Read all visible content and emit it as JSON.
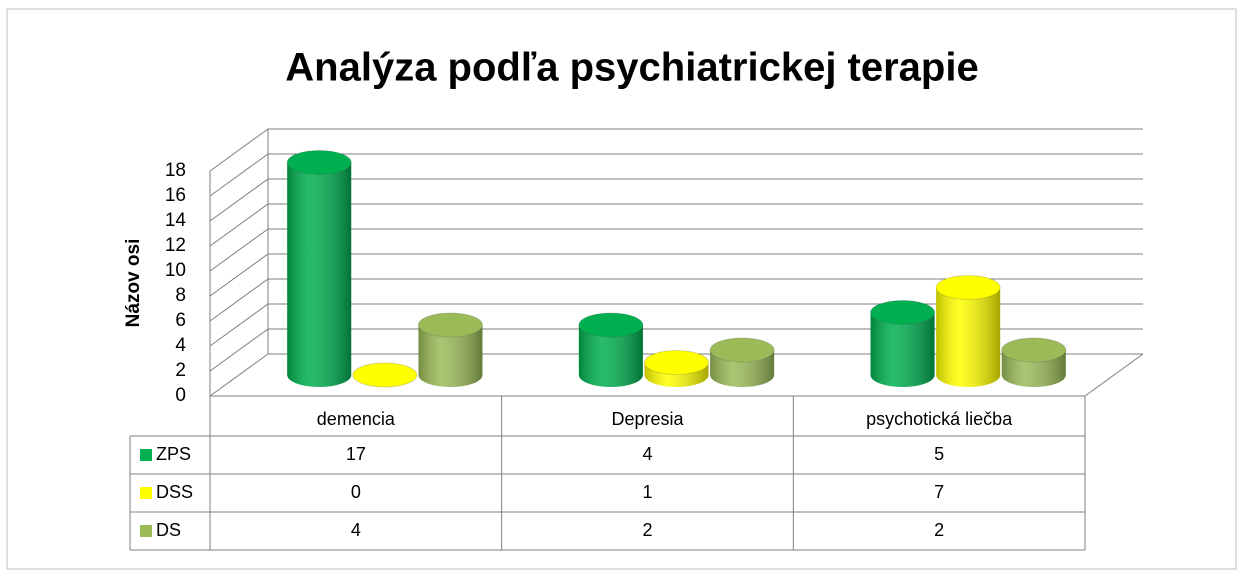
{
  "chart_data": {
    "type": "bar3d-cylinder",
    "title": "Analýza podľa psychiatrickej terapie",
    "y_axis_label": "Názov osi",
    "categories": [
      "demencia",
      "Depresia",
      "psychotická liečba"
    ],
    "series": [
      {
        "name": "ZPS",
        "color": "#00b050",
        "values": [
          17,
          4,
          5
        ]
      },
      {
        "name": "DSS",
        "color": "#ffff00",
        "values": [
          0,
          1,
          7
        ]
      },
      {
        "name": "DS",
        "color": "#9bbb59",
        "values": [
          4,
          2,
          2
        ]
      }
    ],
    "ylim": [
      0,
      18
    ],
    "yticks": [
      0,
      2,
      4,
      6,
      8,
      10,
      12,
      14,
      16,
      18
    ],
    "grid": true,
    "data_table": true
  }
}
